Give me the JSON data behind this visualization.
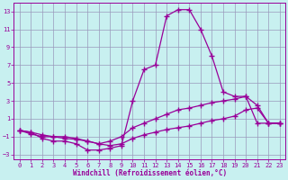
{
  "xlabel": "Windchill (Refroidissement éolien,°C)",
  "ylabel": "",
  "xlim": [
    -0.5,
    23.5
  ],
  "ylim": [
    -3.5,
    14.0
  ],
  "xticks": [
    0,
    1,
    2,
    3,
    4,
    5,
    6,
    7,
    8,
    9,
    10,
    11,
    12,
    13,
    14,
    15,
    16,
    17,
    18,
    19,
    20,
    21,
    22,
    23
  ],
  "yticks": [
    -3,
    -1,
    1,
    3,
    5,
    7,
    9,
    11,
    13
  ],
  "bg_color": "#c8f0f0",
  "line_color": "#990099",
  "grid_color": "#9999bb",
  "series": [
    {
      "x": [
        0,
        1,
        2,
        3,
        4,
        5,
        6,
        7,
        8,
        9,
        10,
        11,
        12,
        13,
        14,
        15,
        16,
        17,
        18,
        19,
        20,
        21,
        22,
        23
      ],
      "y": [
        -0.3,
        -0.5,
        -1.2,
        -1.5,
        -1.5,
        -1.8,
        -2.5,
        -2.5,
        -2.3,
        -2.0,
        3.0,
        6.5,
        7.0,
        12.5,
        13.2,
        13.2,
        11.0,
        8.0,
        4.0,
        3.5,
        3.5,
        0.5,
        0.5,
        0.5
      ]
    },
    {
      "x": [
        0,
        1,
        2,
        3,
        4,
        5,
        6,
        7,
        8,
        9,
        10,
        11,
        12,
        13,
        14,
        15,
        16,
        17,
        18,
        19,
        20,
        21,
        22,
        23
      ],
      "y": [
        -0.3,
        -0.7,
        -1.0,
        -1.0,
        -1.0,
        -1.2,
        -1.5,
        -1.8,
        -1.5,
        -1.0,
        0.0,
        0.5,
        1.0,
        1.5,
        2.0,
        2.2,
        2.5,
        2.8,
        3.0,
        3.2,
        3.5,
        2.5,
        0.5,
        0.5
      ]
    },
    {
      "x": [
        0,
        1,
        2,
        3,
        4,
        5,
        6,
        7,
        8,
        9,
        10,
        11,
        12,
        13,
        14,
        15,
        16,
        17,
        18,
        19,
        20,
        21,
        22,
        23
      ],
      "y": [
        -0.3,
        -0.5,
        -0.8,
        -1.0,
        -1.2,
        -1.3,
        -1.5,
        -1.8,
        -2.0,
        -1.8,
        -1.2,
        -0.8,
        -0.5,
        -0.2,
        0.0,
        0.2,
        0.5,
        0.8,
        1.0,
        1.3,
        2.0,
        2.2,
        0.5,
        0.5
      ]
    }
  ]
}
